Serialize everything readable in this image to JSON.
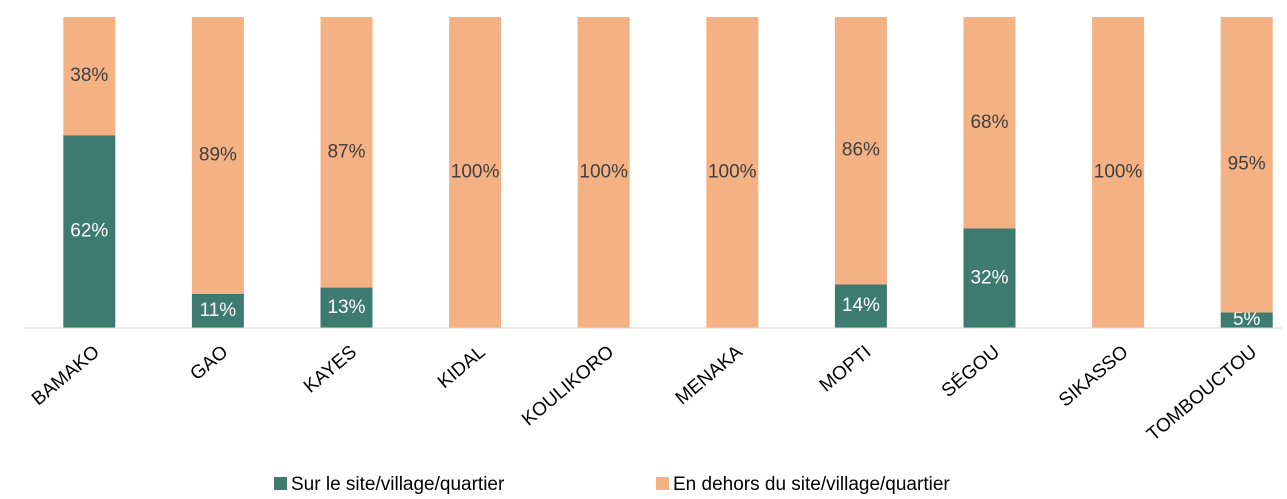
{
  "chart_data": {
    "type": "stacked_bar",
    "categories": [
      "BAMAKO",
      "GAO",
      "KAYES",
      "KIDAL",
      "KOULIKORO",
      "MENAKA",
      "MOPTI",
      "SÉGOU",
      "SIKASSO",
      "TOMBOUCTOU"
    ],
    "series": [
      {
        "name": "Sur le site/village/quartier",
        "color": "#3d7a70",
        "values": [
          62,
          11,
          13,
          0,
          0,
          0,
          14,
          32,
          0,
          5
        ],
        "value_labels": [
          "62%",
          "11%",
          "13%",
          null,
          null,
          null,
          "14%",
          "32%",
          null,
          "5%"
        ]
      },
      {
        "name": "En dehors du site/village/quartier",
        "color": "#f4b183",
        "values": [
          38,
          89,
          87,
          100,
          100,
          100,
          86,
          68,
          100,
          95
        ],
        "value_labels": [
          "38%",
          "89%",
          "87%",
          "100%",
          "100%",
          "100%",
          "86%",
          "68%",
          "100%",
          "95%"
        ]
      }
    ],
    "ylim": [
      0,
      100
    ]
  }
}
